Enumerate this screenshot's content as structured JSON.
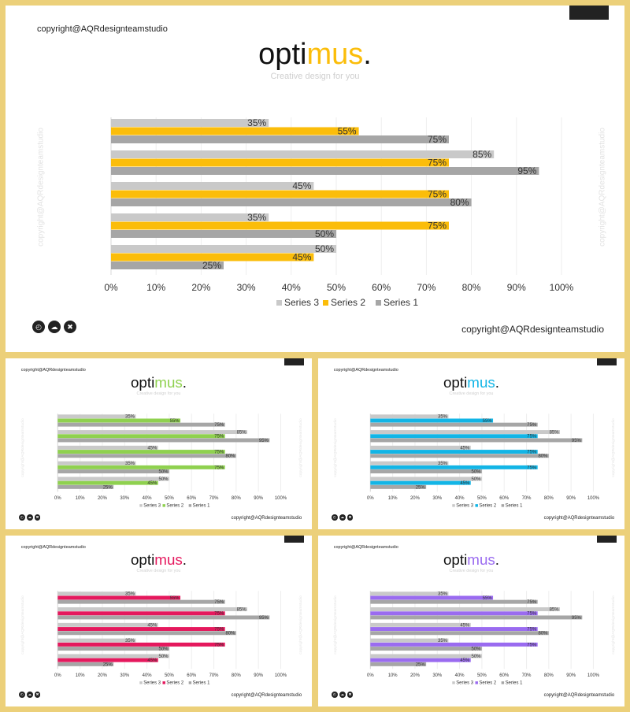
{
  "brand": {
    "copyright": "copyright@AQRdesignteamstudio",
    "title_part1": "opti",
    "title_part2": "mus",
    "title_dot": ".",
    "subtitle": "Creative design for you",
    "vertical_text": "copyright@AQRdesignteamstudio"
  },
  "icons": [
    "clock-icon",
    "cloud-icon",
    "trash-icon"
  ],
  "slides": [
    {
      "accent": "#fbbd0a"
    },
    {
      "accent": "#8fd14f"
    },
    {
      "accent": "#12b5e6"
    },
    {
      "accent": "#e5185d"
    },
    {
      "accent": "#9a6bf0"
    }
  ],
  "chart_data": {
    "type": "bar",
    "orientation": "horizontal",
    "groups": 5,
    "series": [
      {
        "name": "Series 3",
        "color": "#c9c9c9",
        "values": [
          35,
          85,
          45,
          35,
          50
        ]
      },
      {
        "name": "Series 2",
        "color": "accent",
        "values": [
          55,
          75,
          75,
          75,
          45
        ]
      },
      {
        "name": "Series 1",
        "color": "#a6a6a6",
        "values": [
          75,
          95,
          80,
          50,
          25
        ]
      }
    ],
    "xlim": [
      0,
      100
    ],
    "ticks": [
      "0%",
      "10%",
      "20%",
      "30%",
      "40%",
      "50%",
      "60%",
      "70%",
      "80%",
      "90%",
      "100%"
    ],
    "value_suffix": "%",
    "legend": "bottom"
  }
}
